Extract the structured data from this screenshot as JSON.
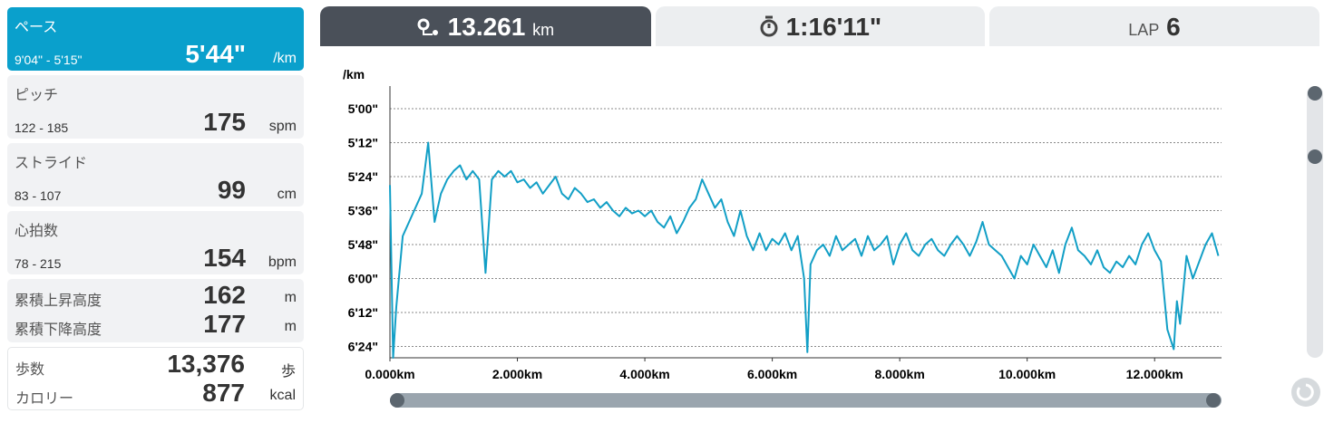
{
  "sidebar": {
    "cards": [
      {
        "label": "ペース",
        "range": "9'04\" - 5'15\"",
        "value": "5'44\"",
        "unit": "/km"
      },
      {
        "label": "ピッチ",
        "range": "122 - 185",
        "value": "175",
        "unit": "spm"
      },
      {
        "label": "ストライド",
        "range": "83 - 107",
        "value": "99",
        "unit": "cm"
      },
      {
        "label": "心拍数",
        "range": "78 - 215",
        "value": "154",
        "unit": "bpm"
      }
    ],
    "elevation": [
      {
        "label": "累積上昇高度",
        "value": "162",
        "unit": "m"
      },
      {
        "label": "累積下降高度",
        "value": "177",
        "unit": "m"
      }
    ],
    "totals": [
      {
        "label": "歩数",
        "value": "13,376",
        "unit": "歩"
      },
      {
        "label": "カロリー",
        "value": "877",
        "unit": "kcal"
      }
    ]
  },
  "tabs": {
    "distance": {
      "value": "13.261",
      "unit": "km"
    },
    "time": "1:16'11\"",
    "lap": {
      "label": "LAP",
      "value": "6"
    }
  },
  "chart_data": {
    "type": "line",
    "y_label": "/km",
    "color": "#129fc6",
    "grid": true,
    "y_inverted": true,
    "xlim": [
      0,
      13.05
    ],
    "ylim": [
      292,
      388
    ],
    "xticks": [
      {
        "value": 0,
        "label": "0.000km"
      },
      {
        "value": 2,
        "label": "2.000km"
      },
      {
        "value": 4,
        "label": "4.000km"
      },
      {
        "value": 6,
        "label": "6.000km"
      },
      {
        "value": 8,
        "label": "8.000km"
      },
      {
        "value": 10,
        "label": "10.000km"
      },
      {
        "value": 12,
        "label": "12.000km"
      }
    ],
    "yticks": [
      {
        "value": 300,
        "label": "5'00\""
      },
      {
        "value": 312,
        "label": "5'12\""
      },
      {
        "value": 324,
        "label": "5'24\""
      },
      {
        "value": 336,
        "label": "5'36\""
      },
      {
        "value": 348,
        "label": "5'48\""
      },
      {
        "value": 360,
        "label": "6'00\""
      },
      {
        "value": 372,
        "label": "6'12\""
      },
      {
        "value": 384,
        "label": "6'24\""
      }
    ],
    "x": [
      0,
      0.05,
      0.1,
      0.2,
      0.3,
      0.4,
      0.5,
      0.6,
      0.7,
      0.8,
      0.9,
      1.0,
      1.1,
      1.2,
      1.3,
      1.4,
      1.5,
      1.6,
      1.7,
      1.8,
      1.9,
      2.0,
      2.1,
      2.2,
      2.3,
      2.4,
      2.5,
      2.6,
      2.7,
      2.8,
      2.9,
      3.0,
      3.1,
      3.2,
      3.3,
      3.4,
      3.5,
      3.6,
      3.7,
      3.8,
      3.9,
      4.0,
      4.1,
      4.2,
      4.3,
      4.4,
      4.5,
      4.6,
      4.7,
      4.8,
      4.9,
      5.0,
      5.1,
      5.2,
      5.3,
      5.4,
      5.5,
      5.6,
      5.7,
      5.8,
      5.9,
      6.0,
      6.1,
      6.2,
      6.3,
      6.4,
      6.5,
      6.55,
      6.6,
      6.7,
      6.8,
      6.9,
      7.0,
      7.1,
      7.2,
      7.3,
      7.4,
      7.5,
      7.6,
      7.7,
      7.8,
      7.9,
      8.0,
      8.1,
      8.2,
      8.3,
      8.4,
      8.5,
      8.6,
      8.7,
      8.8,
      8.9,
      9.0,
      9.1,
      9.2,
      9.3,
      9.4,
      9.5,
      9.6,
      9.7,
      9.8,
      9.9,
      10.0,
      10.1,
      10.2,
      10.3,
      10.4,
      10.5,
      10.6,
      10.7,
      10.8,
      10.9,
      11.0,
      11.1,
      11.2,
      11.3,
      11.4,
      11.5,
      11.6,
      11.7,
      11.8,
      11.9,
      12.0,
      12.1,
      12.2,
      12.3,
      12.35,
      12.4,
      12.5,
      12.6,
      12.7,
      12.8,
      12.9,
      13.0
    ],
    "values": [
      327,
      388,
      370,
      345,
      340,
      335,
      330,
      312,
      340,
      330,
      325,
      322,
      320,
      325,
      322,
      325,
      358,
      325,
      322,
      324,
      322,
      326,
      325,
      328,
      326,
      330,
      327,
      324,
      330,
      332,
      328,
      330,
      333,
      332,
      335,
      333,
      336,
      338,
      335,
      337,
      336,
      338,
      336,
      340,
      342,
      338,
      344,
      340,
      335,
      332,
      325,
      330,
      335,
      332,
      340,
      345,
      336,
      345,
      350,
      344,
      350,
      346,
      348,
      344,
      350,
      345,
      360,
      386,
      355,
      350,
      348,
      352,
      345,
      350,
      348,
      346,
      352,
      345,
      350,
      348,
      345,
      355,
      348,
      344,
      350,
      352,
      348,
      346,
      350,
      352,
      348,
      345,
      348,
      352,
      347,
      340,
      348,
      350,
      352,
      356,
      360,
      352,
      355,
      348,
      352,
      356,
      350,
      358,
      348,
      342,
      350,
      352,
      355,
      350,
      356,
      358,
      354,
      356,
      352,
      355,
      348,
      344,
      350,
      354,
      378,
      385,
      368,
      376,
      352,
      360,
      354,
      348,
      344,
      352
    ]
  }
}
